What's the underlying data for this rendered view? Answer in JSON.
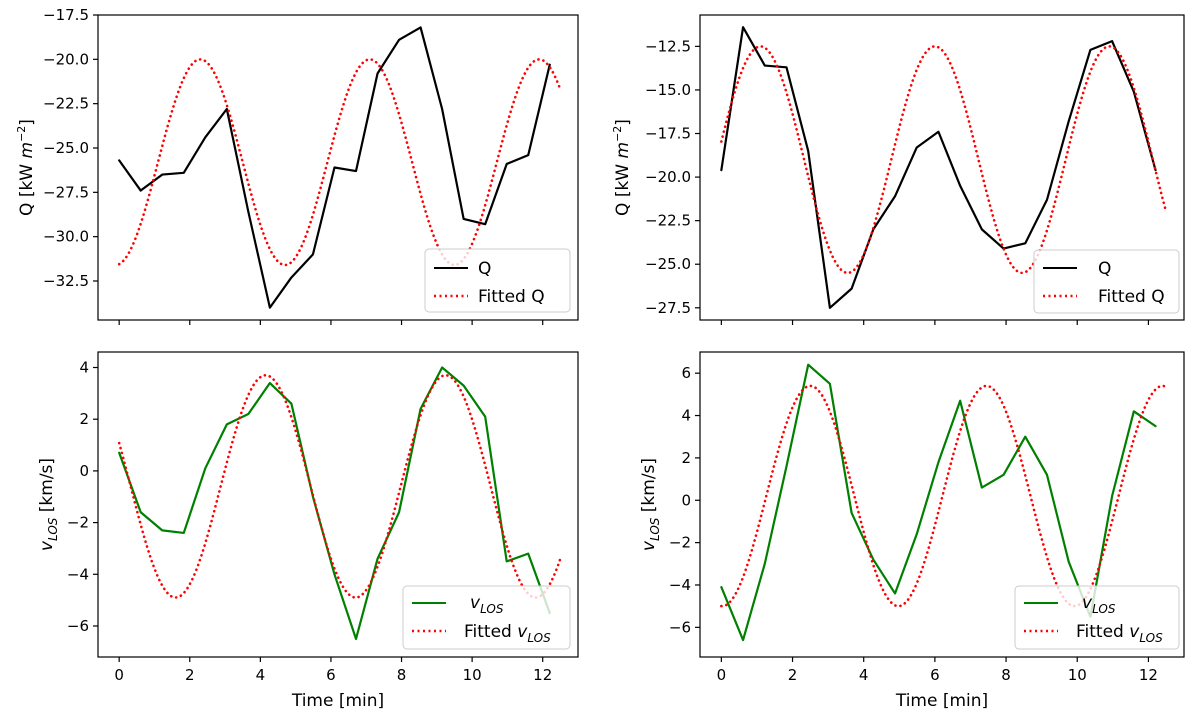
{
  "chart_data": [
    {
      "id": "top-left",
      "type": "line",
      "ylabel": "Q [kW m^-2]",
      "ylabel_parts": {
        "base": "Q [kW ",
        "italic": "m",
        "sup": "−2",
        "end": "]"
      },
      "xlabel": "",
      "xlim": [
        -0.6,
        13.0
      ],
      "ylim": [
        -34.7,
        -17.5
      ],
      "xticks": [
        0,
        2,
        4,
        6,
        8,
        10,
        12
      ],
      "show_xticklabels": false,
      "yticks": [
        -32.5,
        -30.0,
        -27.5,
        -25.0,
        -22.5,
        -20.0,
        -17.5
      ],
      "ytick_labels": [
        "−32.5",
        "−30.0",
        "−27.5",
        "−25.0",
        "−22.5",
        "−20.0",
        "−17.5"
      ],
      "legend_position": "lower-right",
      "series": [
        {
          "name": "Q",
          "legend_label": "Q",
          "color": "#000000",
          "style": "solid",
          "x": [
            0,
            0.61,
            1.22,
            1.83,
            2.44,
            3.05,
            3.66,
            4.27,
            4.88,
            5.49,
            6.1,
            6.71,
            7.32,
            7.93,
            8.54,
            9.15,
            9.76,
            10.37,
            10.98,
            11.59,
            12.2
          ],
          "y": [
            -25.7,
            -27.4,
            -26.5,
            -26.4,
            -24.4,
            -22.8,
            -28.6,
            -34.0,
            -32.3,
            -31.0,
            -26.1,
            -26.3,
            -20.8,
            -18.9,
            -18.2,
            -22.8,
            -29.0,
            -29.3,
            -25.9,
            -25.4,
            -20.3
          ]
        },
        {
          "name": "Fitted Q",
          "legend_label": "Fitted Q",
          "color": "#ff0000",
          "style": "dotted",
          "fit": {
            "kind": "sine",
            "offset": -25.8,
            "amplitude": 5.8,
            "period": 4.8,
            "peak_at": 2.3,
            "xmin": 0,
            "xmax": 12.5
          }
        }
      ]
    },
    {
      "id": "top-right",
      "type": "line",
      "ylabel": "Q [kW m^-2]",
      "ylabel_parts": {
        "base": "Q [kW ",
        "italic": "m",
        "sup": "−2",
        "end": "]"
      },
      "xlabel": "",
      "xlim": [
        -0.6,
        13.0
      ],
      "ylim": [
        -28.2,
        -10.7
      ],
      "xticks": [
        0,
        2,
        4,
        6,
        8,
        10,
        12
      ],
      "show_xticklabels": false,
      "yticks": [
        -27.5,
        -25.0,
        -22.5,
        -20.0,
        -17.5,
        -15.0,
        -12.5
      ],
      "ytick_labels": [
        "−27.5",
        "−25.0",
        "−22.5",
        "−20.0",
        "−17.5",
        "−15.0",
        "−12.5"
      ],
      "legend_position": "lower-right",
      "series": [
        {
          "name": "Q",
          "legend_label": "Q",
          "color": "#000000",
          "style": "solid",
          "x": [
            0,
            0.61,
            1.22,
            1.83,
            2.44,
            3.05,
            3.66,
            4.27,
            4.88,
            5.49,
            6.1,
            6.71,
            7.32,
            7.93,
            8.54,
            9.15,
            9.76,
            10.37,
            10.98,
            11.59,
            12.2
          ],
          "y": [
            -19.6,
            -11.4,
            -13.6,
            -13.7,
            -18.5,
            -27.5,
            -26.4,
            -23.0,
            -21.1,
            -18.3,
            -17.4,
            -20.5,
            -23.0,
            -24.1,
            -23.8,
            -21.3,
            -16.8,
            -12.7,
            -12.2,
            -15.1,
            -19.6
          ]
        },
        {
          "name": "Fitted Q",
          "legend_label": "Fitted Q",
          "color": "#ff0000",
          "style": "dotted",
          "fit": {
            "kind": "sine",
            "offset": -19.0,
            "amplitude": 6.5,
            "period": 4.9,
            "peak_at": 1.1,
            "xmin": 0,
            "xmax": 12.5
          }
        }
      ]
    },
    {
      "id": "bottom-left",
      "type": "line",
      "ylabel": "v_LOS [km/s]",
      "xlabel": "Time [min]",
      "xlim": [
        -0.6,
        13.0
      ],
      "ylim": [
        -7.2,
        4.6
      ],
      "xticks": [
        0,
        2,
        4,
        6,
        8,
        10,
        12
      ],
      "xtick_labels": [
        "0",
        "2",
        "4",
        "6",
        "8",
        "10",
        "12"
      ],
      "show_xticklabels": true,
      "yticks": [
        -6,
        -4,
        -2,
        0,
        2,
        4
      ],
      "ytick_labels": [
        "−6",
        "−4",
        "−2",
        "0",
        "2",
        "4"
      ],
      "legend_position": "lower-right",
      "series": [
        {
          "name": "v_LOS",
          "legend_label": "v_LOS",
          "color": "#008000",
          "style": "solid",
          "x": [
            0,
            0.61,
            1.22,
            1.83,
            2.44,
            3.05,
            3.66,
            4.27,
            4.88,
            5.49,
            6.1,
            6.71,
            7.32,
            7.93,
            8.54,
            9.15,
            9.76,
            10.37,
            10.98,
            11.59,
            12.2
          ],
          "y": [
            0.7,
            -1.6,
            -2.3,
            -2.4,
            0.1,
            1.8,
            2.2,
            3.4,
            2.6,
            -1.0,
            -4.0,
            -6.5,
            -3.4,
            -1.6,
            2.4,
            4.0,
            3.3,
            2.1,
            -3.5,
            -3.2,
            -5.5
          ]
        },
        {
          "name": "Fitted v_LOS",
          "legend_label": "Fitted v_LOS",
          "color": "#ff0000",
          "style": "dotted",
          "fit": {
            "kind": "sine",
            "offset": -0.6,
            "amplitude": 4.3,
            "period": 5.1,
            "peak_at": 4.15,
            "xmin": 0,
            "xmax": 12.5
          }
        }
      ]
    },
    {
      "id": "bottom-right",
      "type": "line",
      "ylabel": "v_LOS [km/s]",
      "xlabel": "Time [min]",
      "xlim": [
        -0.6,
        13.0
      ],
      "ylim": [
        -7.4,
        7.0
      ],
      "xticks": [
        0,
        2,
        4,
        6,
        8,
        10,
        12
      ],
      "xtick_labels": [
        "0",
        "2",
        "4",
        "6",
        "8",
        "10",
        "12"
      ],
      "show_xticklabels": true,
      "yticks": [
        -6,
        -4,
        -2,
        0,
        2,
        4,
        6
      ],
      "ytick_labels": [
        "−6",
        "−4",
        "−2",
        "0",
        "2",
        "4",
        "6"
      ],
      "legend_position": "lower-right",
      "series": [
        {
          "name": "v_LOS",
          "legend_label": "v_LOS",
          "color": "#008000",
          "style": "solid",
          "x": [
            0,
            0.61,
            1.22,
            1.83,
            2.44,
            3.05,
            3.66,
            4.27,
            4.88,
            5.49,
            6.1,
            6.71,
            7.32,
            7.93,
            8.54,
            9.15,
            9.76,
            10.37,
            10.98,
            11.59,
            12.2
          ],
          "y": [
            -4.1,
            -6.6,
            -3.0,
            1.6,
            6.4,
            5.5,
            -0.6,
            -2.8,
            -4.4,
            -1.6,
            1.8,
            4.7,
            0.6,
            1.2,
            3.0,
            1.2,
            -2.9,
            -5.5,
            0.2,
            4.2,
            3.5
          ]
        },
        {
          "name": "Fitted v_LOS",
          "legend_label": "Fitted v_LOS",
          "color": "#ff0000",
          "style": "dotted",
          "fit": {
            "kind": "sine",
            "offset": 0.2,
            "amplitude": 5.2,
            "period": 4.95,
            "peak_at": 2.5,
            "xmin": 0,
            "xmax": 12.5
          }
        }
      ]
    }
  ]
}
